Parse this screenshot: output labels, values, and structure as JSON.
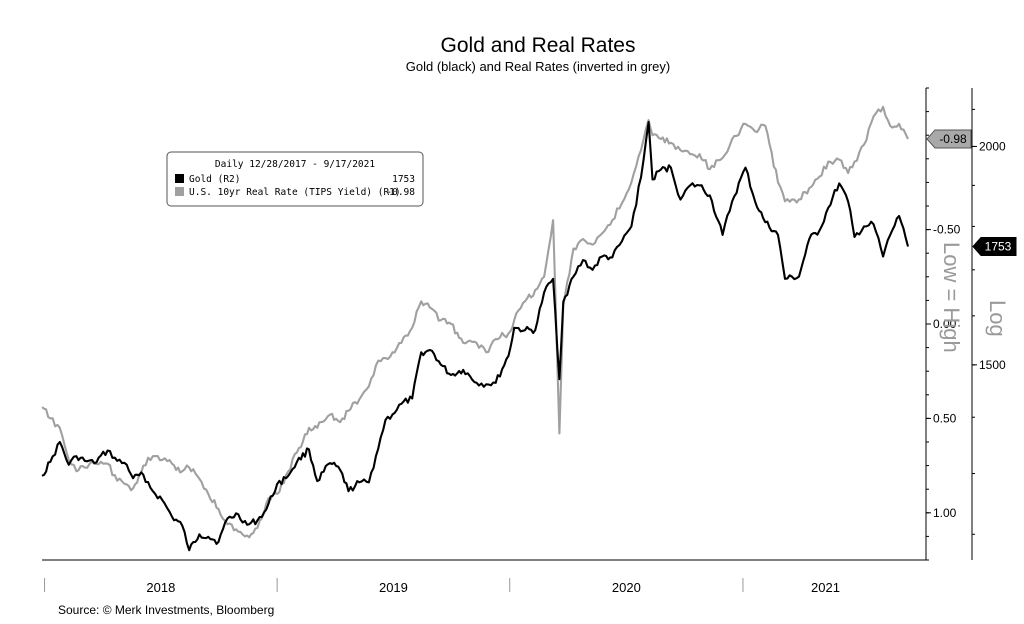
{
  "chart_data": {
    "type": "line",
    "title": "Gold and Real Rates",
    "subtitle": "Gold (black) and Real Rates (inverted in grey)",
    "source": "Source: © Merk Investments, Bloomberg",
    "legend": {
      "header": "Daily 12/28/2017 - 9/17/2021",
      "placement": "top-left",
      "entries": [
        {
          "label": "Gold (R2)",
          "last": "1753",
          "color": "#000000"
        },
        {
          "label": "U.S. 10yr Real Rate (TIPS Yield) (R1)",
          "last": "-0.98",
          "color": "#a0a0a0"
        }
      ]
    },
    "x_axis": {
      "range": [
        "2017-12-28",
        "2021-09-17"
      ],
      "year_labels": [
        "2018",
        "2019",
        "2020",
        "2021"
      ]
    },
    "y_axis_real_rate": {
      "inverted": true,
      "range": [
        -1.25,
        1.25
      ],
      "tick_labels": [
        "-0.50",
        "0.00",
        "0.50",
        "1.00"
      ],
      "tick_values": [
        -0.5,
        0.0,
        0.5,
        1.0
      ],
      "side_label": "Low = High"
    },
    "y_axis_gold": {
      "scale": "log",
      "range": [
        1160,
        2160
      ],
      "tick_labels": [
        "2000",
        "1500"
      ],
      "tick_values": [
        2000,
        1500
      ],
      "side_label": "Log"
    },
    "last_value_tags": {
      "real_rate": "-0.98",
      "gold": "1753"
    },
    "series": [
      {
        "name": "Gold (R2)",
        "color": "#000000",
        "points": [
          [
            "2017-12-28",
            1296
          ],
          [
            "2018-01-10",
            1320
          ],
          [
            "2018-01-25",
            1355
          ],
          [
            "2018-02-08",
            1315
          ],
          [
            "2018-02-20",
            1330
          ],
          [
            "2018-03-05",
            1322
          ],
          [
            "2018-03-20",
            1318
          ],
          [
            "2018-04-10",
            1340
          ],
          [
            "2018-04-25",
            1322
          ],
          [
            "2018-05-10",
            1315
          ],
          [
            "2018-05-20",
            1292
          ],
          [
            "2018-06-05",
            1298
          ],
          [
            "2018-06-20",
            1270
          ],
          [
            "2018-07-05",
            1255
          ],
          [
            "2018-07-20",
            1228
          ],
          [
            "2018-08-05",
            1214
          ],
          [
            "2018-08-16",
            1175
          ],
          [
            "2018-09-01",
            1200
          ],
          [
            "2018-09-15",
            1196
          ],
          [
            "2018-10-01",
            1188
          ],
          [
            "2018-10-15",
            1225
          ],
          [
            "2018-11-01",
            1232
          ],
          [
            "2018-11-15",
            1215
          ],
          [
            "2018-12-01",
            1222
          ],
          [
            "2018-12-15",
            1240
          ],
          [
            "2019-01-01",
            1282
          ],
          [
            "2019-01-15",
            1292
          ],
          [
            "2019-02-01",
            1320
          ],
          [
            "2019-02-20",
            1342
          ],
          [
            "2019-03-05",
            1287
          ],
          [
            "2019-03-25",
            1318
          ],
          [
            "2019-04-10",
            1306
          ],
          [
            "2019-04-23",
            1270
          ],
          [
            "2019-05-10",
            1285
          ],
          [
            "2019-05-25",
            1285
          ],
          [
            "2019-06-05",
            1330
          ],
          [
            "2019-06-20",
            1395
          ],
          [
            "2019-07-01",
            1405
          ],
          [
            "2019-07-15",
            1425
          ],
          [
            "2019-08-01",
            1435
          ],
          [
            "2019-08-15",
            1525
          ],
          [
            "2019-09-01",
            1528
          ],
          [
            "2019-09-15",
            1500
          ],
          [
            "2019-10-01",
            1480
          ],
          [
            "2019-10-20",
            1490
          ],
          [
            "2019-11-10",
            1465
          ],
          [
            "2019-11-25",
            1462
          ],
          [
            "2019-12-10",
            1465
          ],
          [
            "2019-12-30",
            1518
          ],
          [
            "2020-01-08",
            1575
          ],
          [
            "2020-01-25",
            1570
          ],
          [
            "2020-02-10",
            1570
          ],
          [
            "2020-02-24",
            1650
          ],
          [
            "2020-03-09",
            1680
          ],
          [
            "2020-03-19",
            1472
          ],
          [
            "2020-03-25",
            1630
          ],
          [
            "2020-04-10",
            1685
          ],
          [
            "2020-04-25",
            1722
          ],
          [
            "2020-05-10",
            1700
          ],
          [
            "2020-05-25",
            1730
          ],
          [
            "2020-06-10",
            1728
          ],
          [
            "2020-06-25",
            1765
          ],
          [
            "2020-07-10",
            1800
          ],
          [
            "2020-07-25",
            1920
          ],
          [
            "2020-08-06",
            2065
          ],
          [
            "2020-08-12",
            1915
          ],
          [
            "2020-08-25",
            1940
          ],
          [
            "2020-09-10",
            1945
          ],
          [
            "2020-09-25",
            1865
          ],
          [
            "2020-10-10",
            1900
          ],
          [
            "2020-10-25",
            1900
          ],
          [
            "2020-11-10",
            1875
          ],
          [
            "2020-11-30",
            1780
          ],
          [
            "2020-12-15",
            1860
          ],
          [
            "2021-01-05",
            1945
          ],
          [
            "2021-01-20",
            1860
          ],
          [
            "2021-02-05",
            1810
          ],
          [
            "2021-02-25",
            1780
          ],
          [
            "2021-03-08",
            1680
          ],
          [
            "2021-03-30",
            1685
          ],
          [
            "2021-04-15",
            1770
          ],
          [
            "2021-05-01",
            1790
          ],
          [
            "2021-05-15",
            1845
          ],
          [
            "2021-06-01",
            1905
          ],
          [
            "2021-06-15",
            1860
          ],
          [
            "2021-06-25",
            1775
          ],
          [
            "2021-07-10",
            1800
          ],
          [
            "2021-07-25",
            1805
          ],
          [
            "2021-08-09",
            1730
          ],
          [
            "2021-08-20",
            1780
          ],
          [
            "2021-09-03",
            1825
          ],
          [
            "2021-09-10",
            1795
          ],
          [
            "2021-09-17",
            1753
          ]
        ]
      },
      {
        "name": "U.S. 10yr Real Rate (TIPS Yield) (R1)",
        "color": "#a0a0a0",
        "points": [
          [
            "2017-12-28",
            0.44
          ],
          [
            "2018-01-10",
            0.5
          ],
          [
            "2018-01-25",
            0.55
          ],
          [
            "2018-02-08",
            0.72
          ],
          [
            "2018-02-20",
            0.78
          ],
          [
            "2018-03-05",
            0.76
          ],
          [
            "2018-03-20",
            0.74
          ],
          [
            "2018-04-10",
            0.74
          ],
          [
            "2018-04-25",
            0.83
          ],
          [
            "2018-05-10",
            0.85
          ],
          [
            "2018-05-20",
            0.87
          ],
          [
            "2018-06-05",
            0.75
          ],
          [
            "2018-06-20",
            0.7
          ],
          [
            "2018-07-05",
            0.72
          ],
          [
            "2018-07-20",
            0.74
          ],
          [
            "2018-08-05",
            0.78
          ],
          [
            "2018-08-16",
            0.76
          ],
          [
            "2018-09-01",
            0.82
          ],
          [
            "2018-09-15",
            0.9
          ],
          [
            "2018-10-01",
            0.98
          ],
          [
            "2018-10-15",
            1.06
          ],
          [
            "2018-11-01",
            1.1
          ],
          [
            "2018-11-15",
            1.12
          ],
          [
            "2018-12-01",
            1.08
          ],
          [
            "2018-12-15",
            0.95
          ],
          [
            "2019-01-01",
            0.9
          ],
          [
            "2019-01-15",
            0.8
          ],
          [
            "2019-02-01",
            0.68
          ],
          [
            "2019-02-20",
            0.55
          ],
          [
            "2019-03-05",
            0.55
          ],
          [
            "2019-03-25",
            0.48
          ],
          [
            "2019-04-10",
            0.52
          ],
          [
            "2019-04-23",
            0.46
          ],
          [
            "2019-05-10",
            0.4
          ],
          [
            "2019-05-25",
            0.33
          ],
          [
            "2019-06-05",
            0.22
          ],
          [
            "2019-06-20",
            0.18
          ],
          [
            "2019-07-01",
            0.15
          ],
          [
            "2019-07-15",
            0.1
          ],
          [
            "2019-08-01",
            0.02
          ],
          [
            "2019-08-15",
            -0.12
          ],
          [
            "2019-09-01",
            -0.08
          ],
          [
            "2019-09-15",
            -0.02
          ],
          [
            "2019-10-01",
            0.0
          ],
          [
            "2019-10-20",
            0.1
          ],
          [
            "2019-11-10",
            0.1
          ],
          [
            "2019-11-25",
            0.15
          ],
          [
            "2019-12-10",
            0.08
          ],
          [
            "2019-12-30",
            0.05
          ],
          [
            "2020-01-08",
            -0.02
          ],
          [
            "2020-01-25",
            -0.12
          ],
          [
            "2020-02-10",
            -0.18
          ],
          [
            "2020-02-24",
            -0.25
          ],
          [
            "2020-03-09",
            -0.55
          ],
          [
            "2020-03-19",
            0.58
          ],
          [
            "2020-03-25",
            -0.1
          ],
          [
            "2020-04-10",
            -0.4
          ],
          [
            "2020-04-25",
            -0.45
          ],
          [
            "2020-05-10",
            -0.42
          ],
          [
            "2020-05-25",
            -0.48
          ],
          [
            "2020-06-10",
            -0.55
          ],
          [
            "2020-06-25",
            -0.64
          ],
          [
            "2020-07-10",
            -0.75
          ],
          [
            "2020-07-25",
            -0.92
          ],
          [
            "2020-08-06",
            -1.08
          ],
          [
            "2020-08-12",
            -1.0
          ],
          [
            "2020-08-25",
            -0.98
          ],
          [
            "2020-09-10",
            -0.96
          ],
          [
            "2020-09-25",
            -0.92
          ],
          [
            "2020-10-10",
            -0.9
          ],
          [
            "2020-10-25",
            -0.9
          ],
          [
            "2020-11-10",
            -0.82
          ],
          [
            "2020-11-30",
            -0.88
          ],
          [
            "2020-12-15",
            -0.98
          ],
          [
            "2021-01-05",
            -1.06
          ],
          [
            "2021-01-20",
            -1.02
          ],
          [
            "2021-02-05",
            -1.05
          ],
          [
            "2021-02-25",
            -0.75
          ],
          [
            "2021-03-08",
            -0.65
          ],
          [
            "2021-03-30",
            -0.66
          ],
          [
            "2021-04-15",
            -0.72
          ],
          [
            "2021-05-01",
            -0.78
          ],
          [
            "2021-05-15",
            -0.86
          ],
          [
            "2021-06-01",
            -0.87
          ],
          [
            "2021-06-15",
            -0.8
          ],
          [
            "2021-06-25",
            -0.86
          ],
          [
            "2021-07-10",
            -0.95
          ],
          [
            "2021-07-25",
            -1.1
          ],
          [
            "2021-08-09",
            -1.15
          ],
          [
            "2021-08-20",
            -1.05
          ],
          [
            "2021-09-03",
            -1.06
          ],
          [
            "2021-09-10",
            -1.03
          ],
          [
            "2021-09-17",
            -0.98
          ]
        ]
      }
    ]
  }
}
